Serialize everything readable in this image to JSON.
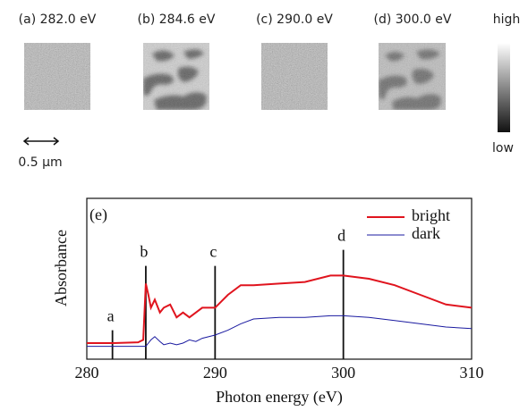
{
  "image_panels": {
    "titles": [
      "(a) 282.0 eV",
      "(b) 284.6 eV",
      "(c) 290.0 eV",
      "(d) 300.0 eV"
    ],
    "colorbar": {
      "high": "high",
      "low": "low"
    },
    "scale_bar": "0.5 µm"
  },
  "chart_data": {
    "type": "line",
    "panel_label": "(e)",
    "x_label": "Photon energy (eV)",
    "y_label": "Absorbance",
    "x": [
      280,
      282,
      284,
      284.4,
      284.6,
      284.8,
      285,
      285.3,
      285.7,
      286,
      286.5,
      287,
      287.5,
      288,
      288.5,
      289,
      290,
      291,
      292,
      293,
      295,
      297,
      299,
      300,
      302,
      304,
      306,
      308,
      310
    ],
    "series": [
      {
        "name": "bright",
        "color": "#e0141e",
        "values": [
          0.1,
          0.1,
          0.105,
          0.12,
          0.47,
          0.4,
          0.32,
          0.37,
          0.29,
          0.32,
          0.34,
          0.26,
          0.29,
          0.26,
          0.29,
          0.32,
          0.32,
          0.4,
          0.46,
          0.46,
          0.47,
          0.48,
          0.52,
          0.52,
          0.5,
          0.46,
          0.4,
          0.34,
          0.32
        ]
      },
      {
        "name": "dark",
        "color": "#1a1aa0",
        "values": [
          0.08,
          0.08,
          0.08,
          0.08,
          0.08,
          0.1,
          0.12,
          0.14,
          0.11,
          0.09,
          0.1,
          0.09,
          0.1,
          0.12,
          0.11,
          0.13,
          0.15,
          0.18,
          0.22,
          0.25,
          0.26,
          0.26,
          0.27,
          0.27,
          0.26,
          0.24,
          0.22,
          0.2,
          0.19
        ]
      }
    ],
    "annotations": [
      {
        "label": "a",
        "x": 282,
        "y": 0.18
      },
      {
        "label": "b",
        "x": 284.6,
        "y": 0.58
      },
      {
        "label": "c",
        "x": 290,
        "y": 0.58
      },
      {
        "label": "d",
        "x": 300,
        "y": 0.68
      }
    ],
    "xlim": [
      280,
      310
    ],
    "xticks": [
      280,
      290,
      300,
      310
    ],
    "ylim": [
      0,
      1
    ]
  }
}
